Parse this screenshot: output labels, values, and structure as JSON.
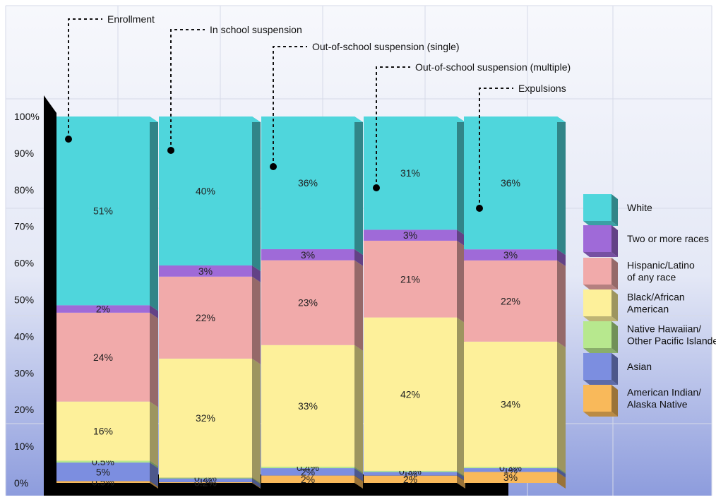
{
  "chart_data": {
    "type": "bar",
    "stacked": true,
    "percent": true,
    "categories": [
      "Enrollment",
      "In school suspension",
      "Out-of-school suspension (single)",
      "Out-of-school suspension (multiple)",
      "Expulsions"
    ],
    "y_ticks": [
      "0%",
      "10%",
      "20%",
      "30%",
      "40%",
      "50%",
      "60%",
      "70%",
      "80%",
      "90%",
      "100%"
    ],
    "ylim": [
      0,
      100
    ],
    "grid": true,
    "legend_position": "right",
    "series": [
      {
        "name": "American Indian/ Alaska Native",
        "color": "#f9b95a",
        "values": [
          0.5,
          0.2,
          2,
          2,
          3
        ],
        "labels": [
          "0.5%",
          "0.2%",
          "2%",
          "2%",
          "3%"
        ]
      },
      {
        "name": "Asian",
        "color": "#7c8ee0",
        "values": [
          5,
          1,
          2,
          1,
          1
        ],
        "labels": [
          "5%",
          "1%",
          "2%",
          "1%",
          "1%"
        ]
      },
      {
        "name": "Native Hawaiian/ Other Pacific Islander",
        "color": "#b7e88e",
        "values": [
          0.5,
          0.2,
          0.4,
          0.3,
          0.3
        ],
        "labels": [
          "0.5%",
          "0.2%",
          "0.4%",
          "0.3%",
          "0.3%"
        ]
      },
      {
        "name": "Black/African American",
        "color": "#fdf09a",
        "values": [
          16,
          32,
          33,
          42,
          34
        ],
        "labels": [
          "16%",
          "32%",
          "33%",
          "42%",
          "34%"
        ]
      },
      {
        "name": "Hispanic/Latino of any race",
        "color": "#f1aaaa",
        "values": [
          24,
          22,
          23,
          21,
          22
        ],
        "labels": [
          "24%",
          "22%",
          "23%",
          "21%",
          "22%"
        ]
      },
      {
        "name": "Two or more races",
        "color": "#9f6ad8",
        "values": [
          2,
          3,
          3,
          3,
          3
        ],
        "labels": [
          "2%",
          "3%",
          "3%",
          "3%",
          "3%"
        ]
      },
      {
        "name": "White",
        "color": "#4fd6dc",
        "values": [
          51,
          40,
          36,
          31,
          36
        ],
        "labels": [
          "51%",
          "40%",
          "36%",
          "31%",
          "36%"
        ]
      }
    ],
    "legend": [
      {
        "lines": [
          "White"
        ],
        "color": "#4fd6dc"
      },
      {
        "lines": [
          "Two or more races"
        ],
        "color": "#9f6ad8"
      },
      {
        "lines": [
          "Hispanic/Latino",
          "of any race"
        ],
        "color": "#f1aaaa"
      },
      {
        "lines": [
          "Black/African",
          "American"
        ],
        "color": "#fdf09a"
      },
      {
        "lines": [
          "Native Hawaiian/",
          "Other Pacific Islande"
        ],
        "color": "#b7e88e"
      },
      {
        "lines": [
          "Asian"
        ],
        "color": "#7c8ee0"
      },
      {
        "lines": [
          "American Indian/",
          "Alaska Native"
        ],
        "color": "#f9b95a"
      }
    ]
  }
}
